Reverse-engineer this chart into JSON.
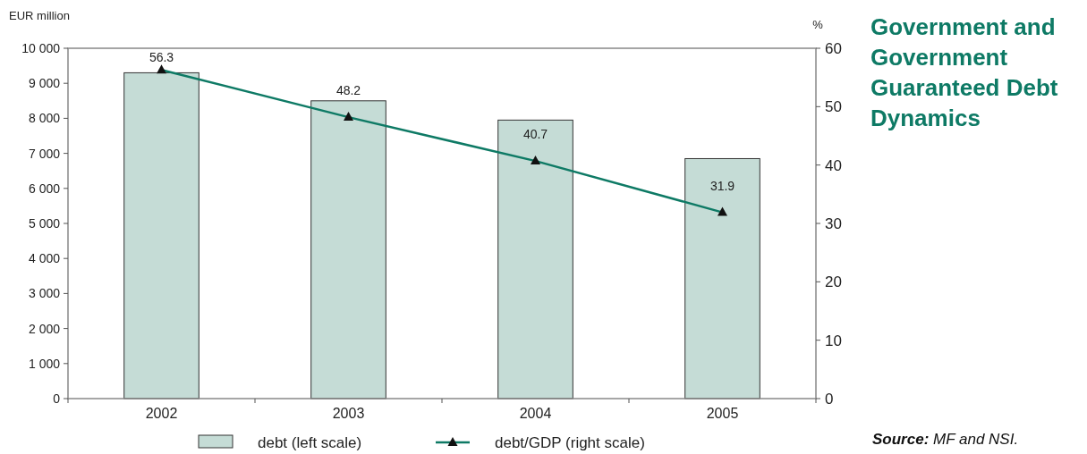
{
  "chart_data": {
    "type": "bar",
    "title": "Government and Government Guaranteed Debt Dynamics",
    "ylabel": "EUR million",
    "y2label": "%",
    "categories": [
      "2002",
      "2003",
      "2004",
      "2005"
    ],
    "series": [
      {
        "name": "debt (left scale)",
        "color": "#c5dcd6",
        "values": [
          9300,
          8500,
          7950,
          6850
        ]
      },
      {
        "name": "debt/GDP (right scale)",
        "type": "line",
        "axis": "y2",
        "color": "#0e7a65",
        "marker": "triangle",
        "values": [
          56.3,
          48.2,
          40.7,
          31.9
        ],
        "value_labels": [
          "56.3",
          "48.2",
          "40.7",
          "31.9"
        ]
      }
    ],
    "ylim": [
      0,
      10000
    ],
    "yticks": [
      {
        "value": 0,
        "label": "0"
      },
      {
        "value": 1000,
        "label": "1 000"
      },
      {
        "value": 2000,
        "label": "2 000"
      },
      {
        "value": 3000,
        "label": "3 000"
      },
      {
        "value": 4000,
        "label": "4 000"
      },
      {
        "value": 5000,
        "label": "5 000"
      },
      {
        "value": 6000,
        "label": "6 000"
      },
      {
        "value": 7000,
        "label": "7 000"
      },
      {
        "value": 8000,
        "label": "8 000"
      },
      {
        "value": 9000,
        "label": "9 000"
      },
      {
        "value": 10000,
        "label": "10 000"
      }
    ],
    "y2lim": [
      0,
      60
    ],
    "y2ticks": [
      0,
      10,
      20,
      30,
      40,
      50,
      60
    ],
    "legend": "bottom",
    "grid": false,
    "annotations": [
      "Source: MF and NSI."
    ]
  }
}
